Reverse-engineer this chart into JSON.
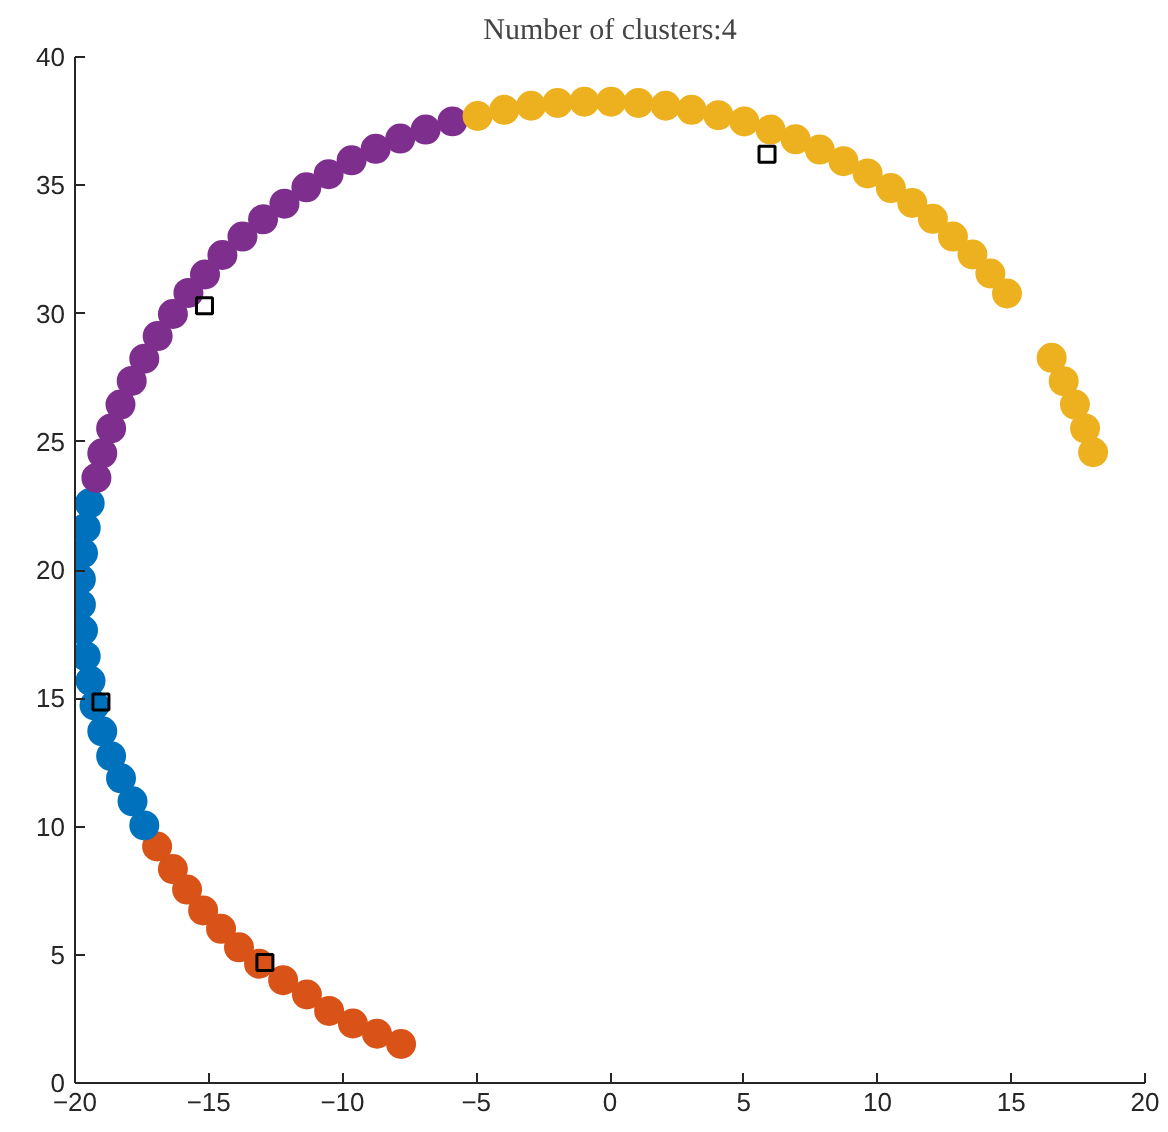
{
  "chart_data": {
    "type": "scatter",
    "title": "Number of clusters:4",
    "xlim": [
      -20,
      20
    ],
    "ylim": [
      0,
      40
    ],
    "xticks": [
      -20,
      -15,
      -10,
      -5,
      0,
      5,
      10,
      15,
      20
    ],
    "yticks": [
      0,
      5,
      10,
      15,
      20,
      25,
      30,
      35,
      40
    ],
    "marker": "circle",
    "series": [
      {
        "color": "#d95319",
        "x": [
          -16.93,
          -16.34,
          -15.81,
          -15.21,
          -14.54,
          -13.87,
          -13.12,
          -12.22,
          -11.33,
          -10.5,
          -9.61,
          -8.71,
          -7.81
        ],
        "values": [
          9.22,
          8.34,
          7.54,
          6.73,
          6.01,
          5.29,
          4.65,
          4.01,
          3.45,
          2.81,
          2.32,
          1.92,
          1.52
        ]
      },
      {
        "color": "#0072bd",
        "x": [
          -19.45,
          -19.6,
          -19.7,
          -19.78,
          -19.78,
          -19.7,
          -19.6,
          -19.42,
          -19.27,
          -18.98,
          -18.65,
          -18.28,
          -17.85,
          -17.41
        ],
        "values": [
          22.6,
          21.64,
          20.66,
          19.64,
          18.65,
          17.65,
          16.64,
          15.68,
          14.72,
          13.71,
          12.74,
          11.88,
          10.98,
          10.04
        ]
      },
      {
        "color": "#7e2f8e",
        "x": [
          -19.2,
          -18.98,
          -18.65,
          -18.3,
          -17.88,
          -17.41,
          -16.91,
          -16.34,
          -15.76,
          -15.14,
          -14.49,
          -13.74,
          -12.97,
          -12.17,
          -11.35,
          -10.52,
          -9.66,
          -8.76,
          -7.84,
          -6.89,
          -5.89
        ],
        "values": [
          23.59,
          24.55,
          25.52,
          26.45,
          27.37,
          28.24,
          29.12,
          29.98,
          30.8,
          31.52,
          32.28,
          33.0,
          33.67,
          34.28,
          34.92,
          35.43,
          35.97,
          36.42,
          36.82,
          37.17,
          37.49
        ]
      },
      {
        "color": "#edb120",
        "x": [
          -4.95,
          -3.95,
          -2.95,
          -1.96,
          -0.96,
          0.04,
          1.06,
          2.08,
          3.05,
          4.05,
          5.02,
          6.0,
          6.94,
          7.84,
          8.73,
          9.63,
          10.5,
          11.3,
          12.07,
          12.82,
          13.55,
          14.22,
          14.84,
          16.51,
          16.96,
          17.38,
          17.76,
          18.06
        ],
        "values": [
          37.7,
          37.94,
          38.1,
          38.21,
          38.26,
          38.26,
          38.21,
          38.1,
          37.94,
          37.73,
          37.49,
          37.17,
          36.79,
          36.39,
          35.94,
          35.46,
          34.89,
          34.31,
          33.69,
          33.0,
          32.3,
          31.56,
          30.78,
          28.27,
          27.36,
          26.45,
          25.52,
          24.59
        ]
      },
      {
        "color": "#000000",
        "marker": "square",
        "x": [
          -12.9,
          -19.03,
          -15.16,
          5.87
        ],
        "values": [
          4.7,
          14.85,
          30.3,
          36.21
        ]
      }
    ]
  }
}
